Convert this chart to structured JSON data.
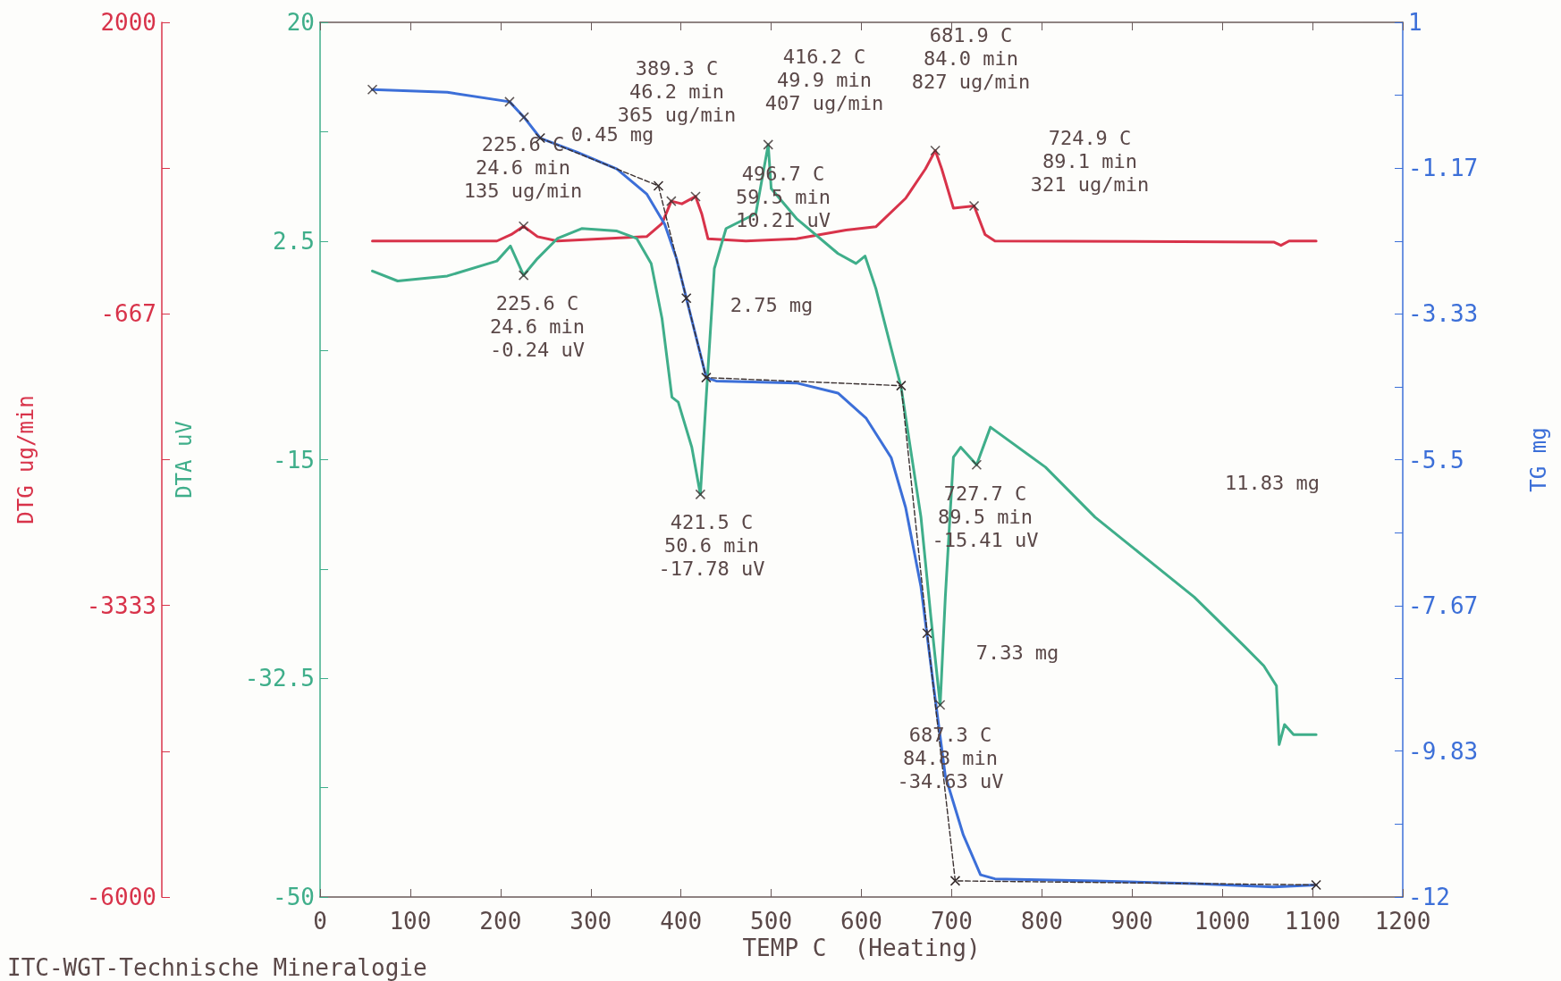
{
  "chart_data": {
    "type": "line",
    "xlabel": "TEMP C  (Heating)",
    "ylabel": "DTG ug/min",
    "y3label": "DTA uV",
    "y2label": "TG mg",
    "xlim": [
      0,
      1200
    ],
    "xticks": [
      0,
      100,
      200,
      300,
      400,
      500,
      600,
      700,
      800,
      900,
      1000,
      1100,
      1200
    ],
    "ylim": [
      -6000,
      2000
    ],
    "yticks": [
      2000,
      {
        "value": 667,
        "label": null
      },
      -667,
      {
        "value": -2000,
        "label": null
      },
      -3333,
      {
        "value": -4667,
        "label": null
      },
      -6000
    ],
    "y3lim": [
      -50,
      20
    ],
    "y3ticks": [
      20,
      {
        "value": 11.25,
        "label": null
      },
      2.5,
      {
        "value": -6.25,
        "label": null
      },
      -15,
      {
        "value": -23.75,
        "label": null
      },
      -32.5,
      {
        "value": -41.25,
        "label": null
      },
      -50
    ],
    "y2lim": [
      -12,
      1
    ],
    "y2ticks": [
      1,
      {
        "value": -0.08,
        "label": null
      },
      -1.17,
      {
        "value": -2.25,
        "label": null
      },
      -3.33,
      {
        "value": -4.42,
        "label": null
      },
      -5.5,
      {
        "value": -6.58,
        "label": null
      },
      -7.67,
      {
        "value": -8.75,
        "label": null
      },
      -9.83,
      {
        "value": -10.92,
        "label": null
      },
      -12
    ],
    "series": [
      {
        "axis": "y",
        "color": "#d8334a",
        "x": [
          58,
          196,
          212,
          225.6,
          241,
          263,
          362,
          379,
          389.3,
          401,
          416.2,
          423,
          430,
          472,
          528,
          583,
          616,
          649,
          671,
          681.9,
          689,
          702,
          724.9,
          737,
          748,
          1057,
          1065,
          1074,
          1104
        ],
        "values": [
          0,
          0,
          60,
          135,
          40,
          0,
          40,
          160,
          365,
          340,
          407,
          250,
          20,
          0,
          20,
          100,
          130,
          390,
          660,
          827,
          660,
          300,
          321,
          60,
          0,
          -10,
          -40,
          0,
          0
        ]
      },
      {
        "axis": "y3",
        "color": "#3fae8a",
        "x": [
          58,
          86,
          141,
          196,
          211,
          225.6,
          241,
          263,
          290,
          329,
          351,
          367,
          379,
          390,
          397,
          412,
          421.5,
          428,
          437,
          450,
          483,
          496.7,
          500,
          528,
          574,
          594,
          604,
          616,
          644,
          666,
          677,
          687.3,
          693,
          702,
          710,
          727.7,
          743,
          804,
          859,
          914,
          969,
          1024,
          1046,
          1060,
          1063,
          1069,
          1079,
          1104
        ],
        "values": [
          0.1,
          -0.7,
          -0.3,
          0.9,
          2.1,
          -0.24,
          1.1,
          2.7,
          3.5,
          3.3,
          2.7,
          0.7,
          -3.7,
          -10,
          -10.4,
          -14,
          -17.78,
          -10,
          0.3,
          3.5,
          4.7,
          10.21,
          6.7,
          4.3,
          1.5,
          0.7,
          1.3,
          -1.3,
          -9.2,
          -19.6,
          -27.6,
          -34.63,
          -26,
          -14.8,
          -14,
          -15.41,
          -12.4,
          -15.6,
          -19.6,
          -22.8,
          -26,
          -29.9,
          -31.5,
          -33.1,
          -37.8,
          -36.2,
          -37,
          -37
        ]
      },
      {
        "axis": "y2",
        "color": "#3c6fd8",
        "x": [
          58,
          141,
          210,
          226,
          244,
          285,
          329,
          362,
          382,
          395,
          406,
          417,
          428,
          439,
          528,
          574,
          605,
          633,
          649,
          666,
          680,
          693,
          713,
          732,
          748,
          859,
          969,
          1057,
          1104
        ],
        "values": [
          0,
          -0.04,
          -0.18,
          -0.41,
          -0.72,
          -0.93,
          -1.18,
          -1.55,
          -2.0,
          -2.51,
          -3.1,
          -3.69,
          -4.28,
          -4.33,
          -4.36,
          -4.51,
          -4.88,
          -5.47,
          -6.21,
          -7.39,
          -8.87,
          -10.2,
          -11.08,
          -11.67,
          -11.73,
          -11.76,
          -11.8,
          -11.85,
          -11.82
        ]
      },
      {
        "axis": "y2",
        "color": "#3a3030",
        "line_style": "dashed",
        "marker": "cross",
        "x": [
          244,
          375,
          406,
          428,
          644,
          673,
          704,
          1104
        ],
        "values": [
          -0.72,
          -1.43,
          -3.1,
          -4.28,
          -4.4,
          -8.08,
          -11.76,
          -11.82
        ]
      },
      {
        "type": "scatter",
        "axis": "y",
        "color": "#3a3030",
        "marker": "cross",
        "x": [
          225.6,
          389.3,
          416.2,
          681.9,
          724.9
        ],
        "values": [
          135,
          365,
          407,
          827,
          321
        ]
      },
      {
        "type": "scatter",
        "axis": "y3",
        "color": "#3a3030",
        "marker": "cross",
        "x": [
          225.6,
          421.5,
          496.7,
          687.3,
          727.7
        ],
        "values": [
          -0.24,
          -17.78,
          10.21,
          -34.63,
          -15.41
        ]
      },
      {
        "type": "scatter",
        "axis": "y2",
        "color": "#3a3030",
        "marker": "cross",
        "x": [
          58,
          210,
          226
        ],
        "values": [
          0,
          -0.18,
          -0.41
        ]
      }
    ],
    "annotations": [
      "225.6 C\n24.6 min\n135 ug/min",
      "389.3 C\n46.2 min\n365 ug/min",
      "416.2 C\n49.9 min\n407 ug/min",
      "681.9 C\n84.0 min\n827 ug/min",
      "724.9 C\n89.1 min\n321 ug/min",
      "0.45 mg",
      "496.7 C\n59.5 min\n10.21 uV",
      "225.6 C\n24.6 min\n-0.24 uV",
      "2.75 mg",
      "421.5 C\n50.6 min\n-17.78 uV",
      "727.7 C\n89.5 min\n-15.41 uV",
      "11.83 mg",
      "7.33 mg",
      "687.3 C\n84.8 min\n-34.63 uV",
      "ITC-WGT-Technische Mineralogie"
    ]
  }
}
